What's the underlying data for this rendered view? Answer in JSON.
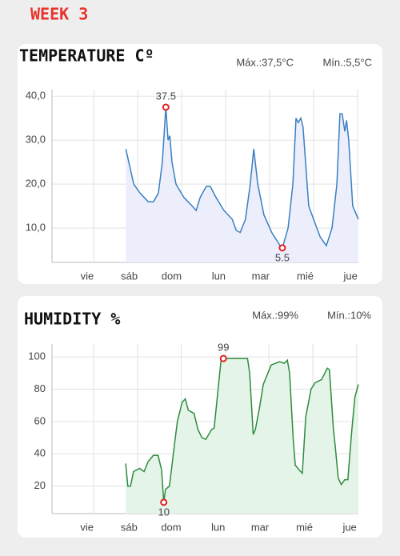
{
  "header": {
    "title": "WEEK 3"
  },
  "chart_data": [
    {
      "type": "line",
      "title": "TEMPERATURE Cº",
      "stats": [
        "Máx.:37,5°C",
        "Mín.:5,5°C"
      ],
      "x": [
        1.73,
        1.91,
        2.05,
        2.24,
        2.36,
        2.47,
        2.56,
        2.64,
        2.69,
        2.73,
        2.78,
        2.87,
        3.05,
        3.24,
        3.33,
        3.42,
        3.56,
        3.65,
        3.78,
        3.96,
        4.15,
        4.24,
        4.33,
        4.45,
        4.56,
        4.64,
        4.73,
        4.87,
        5.05,
        5.24,
        5.29,
        5.42,
        5.53,
        5.6,
        5.65,
        5.71,
        5.76,
        5.89,
        6.0,
        6.15,
        6.29,
        6.42,
        6.53,
        6.6,
        6.65,
        6.71,
        6.75,
        6.8,
        6.89,
        7.02
      ],
      "values": [
        28,
        20,
        18,
        16,
        16,
        18,
        25,
        37.5,
        30,
        31,
        25,
        20,
        17,
        15,
        14,
        17,
        19.5,
        19.5,
        17,
        14,
        12,
        9.5,
        9,
        12,
        20,
        28,
        20,
        13,
        9,
        6,
        5.5,
        10,
        20,
        35,
        34,
        35,
        33,
        15,
        12,
        8,
        6,
        10,
        20,
        36,
        36,
        32,
        34.5,
        30,
        15,
        12
      ],
      "color": "#3a7fc1",
      "fill_color": "#eceefb",
      "xlim": [
        0.05,
        7.02
      ],
      "xticks": [
        {
          "value": 1,
          "label": "vie"
        },
        {
          "value": 2,
          "label": "sáb"
        },
        {
          "value": 3,
          "label": "dom"
        },
        {
          "value": 4,
          "label": "lun"
        },
        {
          "value": 5,
          "label": "mar"
        },
        {
          "value": 6,
          "label": "mié"
        },
        {
          "value": 7,
          "label": "jue"
        }
      ],
      "ylim": [
        2.2,
        41.5
      ],
      "yticks": [
        {
          "value": 10,
          "label": "10,0"
        },
        {
          "value": 20,
          "label": "20,0"
        },
        {
          "value": 30,
          "label": "30,0"
        },
        {
          "value": 40,
          "label": "40,0"
        }
      ],
      "grid": true,
      "markers": [
        {
          "x": 2.64,
          "y": 37.5,
          "position": "above"
        },
        {
          "x": 5.29,
          "y": 5.5,
          "position": "below"
        }
      ]
    },
    {
      "type": "line",
      "title": "HUMIDITY %",
      "stats": [
        "Máx.:99%",
        "Mín.:10%"
      ],
      "x": [
        1.73,
        1.78,
        1.84,
        1.91,
        2.05,
        2.15,
        2.24,
        2.36,
        2.47,
        2.55,
        2.6,
        2.64,
        2.73,
        2.84,
        2.91,
        3.02,
        3.09,
        3.16,
        3.29,
        3.38,
        3.47,
        3.56,
        3.69,
        3.75,
        3.82,
        3.91,
        3.96,
        4.15,
        4.51,
        4.56,
        4.64,
        4.69,
        4.78,
        4.87,
        5.05,
        5.24,
        5.35,
        5.42,
        5.47,
        5.55,
        5.6,
        5.69,
        5.76,
        5.84,
        5.96,
        6.05,
        6.2,
        6.33,
        6.38,
        6.47,
        6.51,
        6.58,
        6.65,
        6.73,
        6.8,
        6.89,
        6.96,
        7.04
      ],
      "values": [
        34,
        20,
        20,
        29,
        31,
        29,
        35,
        39,
        39,
        30,
        10,
        18,
        20,
        45,
        60,
        72,
        74,
        67,
        65,
        55,
        50,
        49,
        55,
        56,
        75,
        99,
        99,
        99,
        99,
        90,
        52,
        55,
        68,
        83,
        95,
        97,
        96,
        98,
        90,
        50,
        33,
        30,
        28,
        63,
        80,
        84,
        86,
        93,
        92,
        55,
        45,
        25,
        21,
        24,
        24,
        55,
        75,
        83
      ],
      "color": "#2e8b3e",
      "fill_color": "#e4f4e8",
      "xlim": [
        0.05,
        7.04
      ],
      "xticks": [
        {
          "value": 1,
          "label": "vie"
        },
        {
          "value": 2,
          "label": "sáb"
        },
        {
          "value": 3,
          "label": "dom"
        },
        {
          "value": 4,
          "label": "lun"
        },
        {
          "value": 5,
          "label": "mar"
        },
        {
          "value": 6,
          "label": "mié"
        },
        {
          "value": 7,
          "label": "jue"
        }
      ],
      "ylim": [
        3,
        108
      ],
      "yticks": [
        20,
        40,
        60,
        80,
        100
      ],
      "grid": true,
      "markers": [
        {
          "x": 3.96,
          "y": 99,
          "position": "above"
        },
        {
          "x": 2.6,
          "y": 10,
          "position": "below"
        }
      ]
    }
  ]
}
